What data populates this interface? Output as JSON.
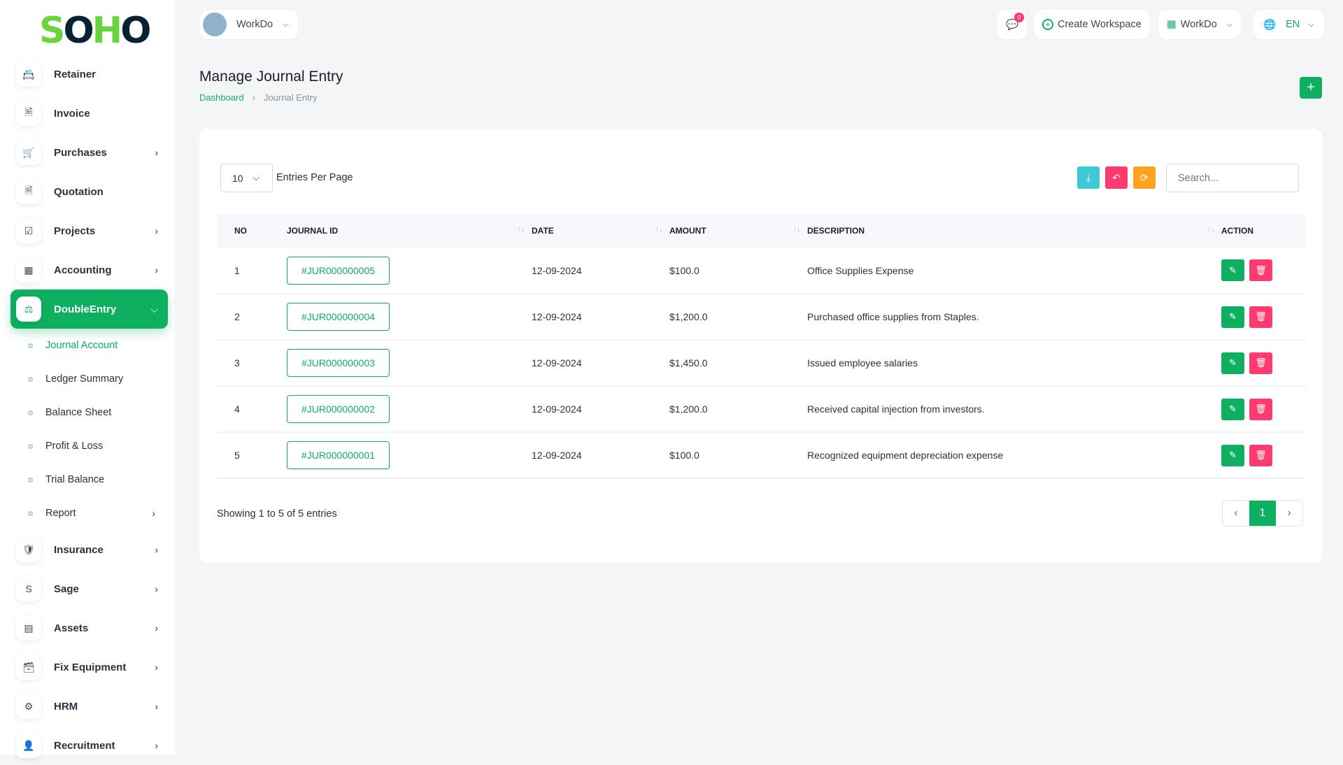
{
  "logo": {
    "text_a": "S",
    "text_b": "O",
    "text_c": "H",
    "text_d": "O"
  },
  "header": {
    "workspace": "WorkDo",
    "notif_count": "0",
    "create_workspace": "Create Workspace",
    "workdo": "WorkDo",
    "lang": "EN"
  },
  "sidebar": {
    "items": [
      {
        "label": "Retainer",
        "icon": "📇",
        "chev": false
      },
      {
        "label": "Invoice",
        "icon": "🗎",
        "chev": false
      },
      {
        "label": "Purchases",
        "icon": "🛒",
        "chev": true
      },
      {
        "label": "Quotation",
        "icon": "🗎",
        "chev": false
      },
      {
        "label": "Projects",
        "icon": "☑",
        "chev": true
      },
      {
        "label": "Accounting",
        "icon": "▦",
        "chev": true
      },
      {
        "label": "DoubleEntry",
        "icon": "⚖",
        "chev": true,
        "active": true
      }
    ],
    "sub": [
      "Journal Account",
      "Ledger Summary",
      "Balance Sheet",
      "Profit & Loss",
      "Trial Balance",
      "Report"
    ],
    "items2": [
      {
        "label": "Insurance",
        "icon": "🛡"
      },
      {
        "label": "Sage",
        "icon": "S"
      },
      {
        "label": "Assets",
        "icon": "▤"
      },
      {
        "label": "Fix Equipment",
        "icon": "🗃"
      },
      {
        "label": "HRM",
        "icon": "⚙"
      },
      {
        "label": "Recruitment",
        "icon": "👤"
      }
    ]
  },
  "page": {
    "title": "Manage Journal Entry",
    "breadcrumb": [
      "Dashboard",
      "Journal Entry"
    ]
  },
  "table_ctrl": {
    "per_page": "10",
    "per_page_label": "Entries Per Page",
    "search_placeholder": "Search..."
  },
  "colors": {
    "primary": "#0eaf5f",
    "danger": "#ff3a6e",
    "info": "#3ec9d6",
    "warning": "#ffa21d"
  },
  "table": {
    "headers": [
      "NO",
      "JOURNAL ID",
      "DATE",
      "AMOUNT",
      "DESCRIPTION",
      "ACTION"
    ],
    "rows": [
      [
        "1",
        "#JUR000000005",
        "12-09-2024",
        "$100.0",
        "Office Supplies Expense"
      ],
      [
        "2",
        "#JUR000000004",
        "12-09-2024",
        "$1,200.0",
        "Purchased office supplies from Staples."
      ],
      [
        "3",
        "#JUR000000003",
        "12-09-2024",
        "$1,450.0",
        "Issued employee salaries"
      ],
      [
        "4",
        "#JUR000000002",
        "12-09-2024",
        "$1,200.0",
        "Received capital injection from investors."
      ],
      [
        "5",
        "#JUR000000001",
        "12-09-2024",
        "$100.0",
        "Recognized equipment depreciation expense"
      ]
    ]
  },
  "footer": {
    "showing": "Showing 1 to 5 of 5 entries",
    "page": "1"
  }
}
